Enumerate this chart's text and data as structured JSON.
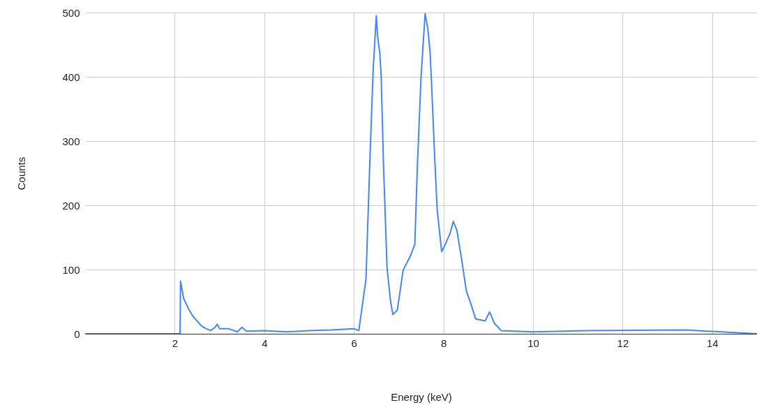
{
  "chart_data": {
    "type": "line",
    "xlabel": "Energy (keV)",
    "ylabel": "Counts",
    "xlim": [
      0,
      15
    ],
    "xticks": [
      2,
      4,
      6,
      8,
      10,
      12,
      14
    ],
    "ylim": [
      0,
      500
    ],
    "yticks": [
      0,
      100,
      200,
      300,
      400,
      500
    ],
    "grid": true,
    "series": [
      {
        "color": "#4285f4",
        "x": [
          0,
          2.12,
          2.13,
          2.2,
          2.3,
          2.4,
          2.5,
          2.6,
          2.7,
          2.8,
          2.9,
          2.95,
          3.0,
          3.2,
          3.4,
          3.5,
          3.6,
          4.0,
          4.5,
          5.0,
          5.5,
          6.0,
          6.11,
          6.27,
          6.35,
          6.43,
          6.5,
          6.53,
          6.58,
          6.61,
          6.66,
          6.74,
          6.82,
          6.87,
          6.97,
          7.1,
          7.26,
          7.36,
          7.42,
          7.5,
          7.59,
          7.65,
          7.7,
          7.73,
          7.81,
          7.86,
          7.96,
          8.04,
          8.15,
          8.22,
          8.3,
          8.41,
          8.51,
          8.62,
          8.72,
          8.93,
          9.03,
          9.14,
          9.29,
          10.0,
          11.2,
          13.4,
          15
        ],
        "values": [
          0,
          0,
          82,
          55,
          40,
          28,
          20,
          12,
          8,
          5,
          10,
          15,
          8,
          8,
          3,
          10,
          4,
          5,
          3,
          5,
          6,
          8,
          5,
          85,
          255,
          410,
          495,
          463,
          436,
          400,
          266,
          103,
          50,
          30,
          37,
          99,
          121,
          139,
          266,
          400,
          498,
          476,
          440,
          396,
          266,
          193,
          128,
          139,
          157,
          175,
          161,
          114,
          67,
          45,
          23,
          20,
          34,
          16,
          5,
          3,
          5,
          6,
          0
        ]
      }
    ]
  }
}
